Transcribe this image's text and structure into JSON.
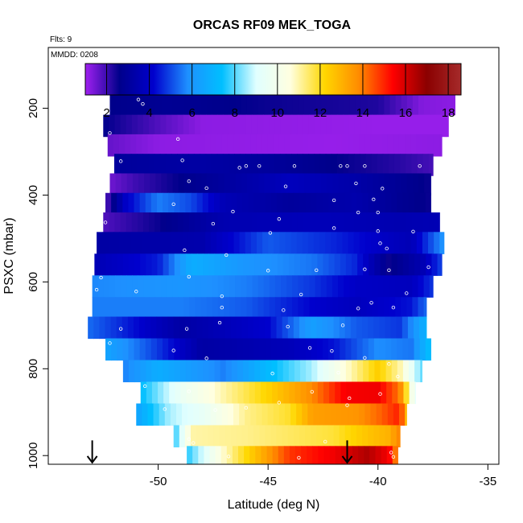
{
  "chart_data": {
    "type": "heatmap",
    "title": "ORCAS RF09 MEK_TOGA",
    "flights_label": "Flts: 9",
    "date_label": "MMDD: 0208",
    "xlabel": "Latitude (deg N)",
    "ylabel": "PSXC (mbar)",
    "xlim": [
      -55,
      -34.5
    ],
    "ylim": [
      1020,
      60
    ],
    "x_ticks": [
      -50,
      -45,
      -40,
      -35
    ],
    "y_ticks": [
      200,
      400,
      600,
      800,
      1000
    ],
    "colorbar": {
      "min": 1,
      "max": 18.6,
      "ticks": [
        2,
        4,
        6,
        8,
        10,
        12,
        14,
        16,
        18
      ],
      "colors": [
        "#a020f0",
        "#00008b",
        "#0000cd",
        "#1e90ff",
        "#00bfff",
        "#e0ffff",
        "#ffffe0",
        "#ffd700",
        "#ff8c00",
        "#ff0000",
        "#8b0000",
        "#a52a2a"
      ]
    },
    "bands": [
      {
        "p": 190,
        "xmin": -52.2,
        "xmax": -36.5,
        "knots": [
          [
            -52.2,
            2.6
          ],
          [
            -49.5,
            2.8
          ],
          [
            -45,
            2.5
          ],
          [
            -40,
            2.3
          ],
          [
            -38,
            1.3
          ],
          [
            -36.5,
            1.2
          ]
        ]
      },
      {
        "p": 240,
        "xmin": -52.5,
        "xmax": -36.8,
        "knots": [
          [
            -52.5,
            2.6
          ],
          [
            -50,
            1.8
          ],
          [
            -48,
            1.2
          ],
          [
            -40,
            1.1
          ],
          [
            -36.8,
            1.1
          ]
        ]
      },
      {
        "p": 285,
        "xmin": -52.3,
        "xmax": -37.1,
        "knots": [
          [
            -52.3,
            1.6
          ],
          [
            -50,
            1.2
          ],
          [
            -42,
            1.1
          ],
          [
            -37.1,
            1.2
          ]
        ]
      },
      {
        "p": 330,
        "xmin": -52.0,
        "xmax": -37.5,
        "knots": [
          [
            -52.0,
            3.0
          ],
          [
            -48,
            3.2
          ],
          [
            -45,
            3.0
          ],
          [
            -42,
            2.6
          ],
          [
            -39,
            2.2
          ],
          [
            -37.5,
            1.9
          ]
        ]
      },
      {
        "p": 375,
        "xmin": -52.2,
        "xmax": -37.6,
        "knots": [
          [
            -52.2,
            1.5
          ],
          [
            -51,
            2.0
          ],
          [
            -49,
            2.6
          ],
          [
            -46,
            3.3
          ],
          [
            -44,
            3.8
          ],
          [
            -41,
            3.3
          ],
          [
            -37.6,
            2.5
          ]
        ]
      },
      {
        "p": 420,
        "xmin": -52.4,
        "xmax": -37.6,
        "knots": [
          [
            -52.4,
            1.7
          ],
          [
            -51.5,
            4.0
          ],
          [
            -50,
            5.6
          ],
          [
            -48.5,
            5.0
          ],
          [
            -47,
            3.6
          ],
          [
            -44,
            3.0
          ],
          [
            -41,
            3.4
          ],
          [
            -39,
            2.8
          ],
          [
            -37.6,
            2.5
          ]
        ]
      },
      {
        "p": 465,
        "xmin": -52.5,
        "xmax": -37.2,
        "knots": [
          [
            -52.5,
            1.8
          ],
          [
            -50,
            2.5
          ],
          [
            -47,
            3.5
          ],
          [
            -43,
            3.7
          ],
          [
            -39,
            3.5
          ],
          [
            -37.2,
            3.6
          ]
        ]
      },
      {
        "p": 510,
        "xmin": -52.8,
        "xmax": -37.0,
        "knots": [
          [
            -52.8,
            3.2
          ],
          [
            -48,
            3.4
          ],
          [
            -45,
            5.2
          ],
          [
            -42,
            4.6
          ],
          [
            -38.5,
            3.6
          ],
          [
            -37.0,
            6.0
          ]
        ]
      },
      {
        "p": 560,
        "xmin": -52.9,
        "xmax": -37.1,
        "knots": [
          [
            -52.9,
            3.6
          ],
          [
            -50,
            4.5
          ],
          [
            -48.5,
            6.8
          ],
          [
            -46,
            6.0
          ],
          [
            -43,
            5.5
          ],
          [
            -41,
            4.6
          ],
          [
            -39.5,
            2.5
          ],
          [
            -38,
            3.5
          ],
          [
            -37.1,
            5.0
          ]
        ]
      },
      {
        "p": 610,
        "xmin": -53.0,
        "xmax": -37.5,
        "knots": [
          [
            -53.0,
            5.7
          ],
          [
            -49,
            6.0
          ],
          [
            -46,
            5.6
          ],
          [
            -43,
            4.8
          ],
          [
            -41,
            4.0
          ],
          [
            -38.5,
            3.8
          ],
          [
            -37.5,
            4.8
          ]
        ]
      },
      {
        "p": 660,
        "xmin": -53.0,
        "xmax": -37.8,
        "knots": [
          [
            -53.0,
            5.6
          ],
          [
            -49,
            5.6
          ],
          [
            -46,
            5.2
          ],
          [
            -43,
            4.2
          ],
          [
            -41,
            3.8
          ],
          [
            -38.5,
            4.4
          ],
          [
            -37.8,
            5.4
          ]
        ]
      },
      {
        "p": 705,
        "xmin": -53.2,
        "xmax": -37.8,
        "knots": [
          [
            -53.2,
            5.4
          ],
          [
            -51,
            4.3
          ],
          [
            -49,
            3.2
          ],
          [
            -45,
            4.2
          ],
          [
            -43,
            6.3
          ],
          [
            -41,
            5.2
          ],
          [
            -39,
            4.8
          ],
          [
            -37.8,
            7.0
          ]
        ]
      },
      {
        "p": 755,
        "xmin": -52.4,
        "xmax": -37.6,
        "knots": [
          [
            -52.4,
            6.5
          ],
          [
            -50,
            4.8
          ],
          [
            -48,
            3.2
          ],
          [
            -44,
            3.7
          ],
          [
            -42,
            4.4
          ],
          [
            -40,
            5.8
          ],
          [
            -38.5,
            5.5
          ],
          [
            -37.6,
            7.5
          ]
        ]
      },
      {
        "p": 805,
        "xmin": -51.6,
        "xmax": -38.0,
        "knots": [
          [
            -51.6,
            5.6
          ],
          [
            -50,
            6.8
          ],
          [
            -47,
            5.6
          ],
          [
            -45,
            7.2
          ],
          [
            -43,
            8.6
          ],
          [
            -41.5,
            10.6
          ],
          [
            -40,
            12.4
          ],
          [
            -39,
            11.0
          ],
          [
            -38,
            8.0
          ]
        ]
      },
      {
        "p": 855,
        "xmin": -50.8,
        "xmax": -38.3,
        "knots": [
          [
            -50.8,
            7.3
          ],
          [
            -49,
            9.5
          ],
          [
            -47,
            11.0
          ],
          [
            -45,
            12.3
          ],
          [
            -43,
            13.8
          ],
          [
            -41.5,
            15.5
          ],
          [
            -40,
            15.6
          ],
          [
            -39,
            14.0
          ],
          [
            -38.3,
            9.0
          ]
        ]
      },
      {
        "p": 905,
        "xmin": -51.0,
        "xmax": -38.7,
        "knots": [
          [
            -51.0,
            6.4
          ],
          [
            -49.5,
            8.6
          ],
          [
            -48,
            9.4
          ],
          [
            -46,
            11.2
          ],
          [
            -44,
            11.9
          ],
          [
            -43,
            13.4
          ],
          [
            -41,
            13.6
          ],
          [
            -40,
            14.2
          ],
          [
            -39,
            15.1
          ],
          [
            -38.7,
            12.5
          ]
        ]
      },
      {
        "p": 955,
        "xmin": -49.3,
        "xmax": -39.0,
        "knots": [
          [
            -49.3,
            7.5
          ],
          [
            -48.5,
            11.0
          ],
          [
            -46,
            11.2
          ],
          [
            -44,
            11.5
          ],
          [
            -42,
            11.8
          ],
          [
            -40.5,
            12.6
          ],
          [
            -39.5,
            13.0
          ],
          [
            -39.0,
            14.0
          ]
        ]
      },
      {
        "p": 1003,
        "xmin": -48.7,
        "xmax": -39.1,
        "knots": [
          [
            -48.7,
            7.6
          ],
          [
            -47,
            10.8
          ],
          [
            -45.5,
            12.8
          ],
          [
            -44,
            14.8
          ],
          [
            -42,
            15.6
          ],
          [
            -40.5,
            16.5
          ],
          [
            -39.5,
            15.5
          ],
          [
            -39.1,
            13.5
          ]
        ]
      }
    ],
    "band_half_mbar": 25,
    "column_width_deg": 0.26,
    "points": [
      [
        -50.9,
        180
      ],
      [
        -50.7,
        190
      ],
      [
        -36.3,
        178
      ],
      [
        -52.2,
        257
      ],
      [
        -49.1,
        271
      ],
      [
        -51.7,
        322
      ],
      [
        -48.9,
        320
      ],
      [
        -46.3,
        337
      ],
      [
        -46.0,
        333
      ],
      [
        -45.4,
        333
      ],
      [
        -43.8,
        333
      ],
      [
        -41.7,
        333
      ],
      [
        -41.4,
        333
      ],
      [
        -40.6,
        333
      ],
      [
        -38.1,
        333
      ],
      [
        -48.6,
        368
      ],
      [
        -47.8,
        384
      ],
      [
        -44.2,
        380
      ],
      [
        -41.0,
        373
      ],
      [
        -39.8,
        385
      ],
      [
        -40.2,
        410
      ],
      [
        -42.0,
        412
      ],
      [
        -49.3,
        421
      ],
      [
        -46.6,
        438
      ],
      [
        -44.5,
        455
      ],
      [
        -40.9,
        440
      ],
      [
        -40.0,
        440
      ],
      [
        -36.8,
        457
      ],
      [
        -52.4,
        463
      ],
      [
        -47.5,
        466
      ],
      [
        -44.9,
        487
      ],
      [
        -42.0,
        476
      ],
      [
        -40.0,
        483
      ],
      [
        -38.4,
        484
      ],
      [
        -39.9,
        511
      ],
      [
        -48.8,
        527
      ],
      [
        -46.9,
        538
      ],
      [
        -39.6,
        523
      ],
      [
        -52.6,
        590
      ],
      [
        -48.6,
        588
      ],
      [
        -45.0,
        574
      ],
      [
        -42.8,
        573
      ],
      [
        -40.6,
        571
      ],
      [
        -39.5,
        573
      ],
      [
        -37.7,
        566
      ],
      [
        -51.0,
        622
      ],
      [
        -47.1,
        633
      ],
      [
        -43.5,
        629
      ],
      [
        -40.3,
        648
      ],
      [
        -38.7,
        626
      ],
      [
        -52.8,
        618
      ],
      [
        -47.1,
        659
      ],
      [
        -44.3,
        665
      ],
      [
        -40.9,
        661
      ],
      [
        -39.3,
        659
      ],
      [
        -41.6,
        700
      ],
      [
        -47.2,
        694
      ],
      [
        -44.1,
        703
      ],
      [
        -51.7,
        708
      ],
      [
        -48.7,
        708
      ],
      [
        -52.2,
        741
      ],
      [
        -49.3,
        758
      ],
      [
        -47.8,
        776
      ],
      [
        -43.1,
        752
      ],
      [
        -42.1,
        759
      ],
      [
        -40.6,
        775
      ],
      [
        -39.5,
        789
      ],
      [
        -44.8,
        811
      ],
      [
        -41.8,
        809
      ],
      [
        -39.1,
        818
      ],
      [
        -50.6,
        840
      ],
      [
        -48.6,
        852
      ],
      [
        -43.0,
        853
      ],
      [
        -41.3,
        868
      ],
      [
        -39.9,
        858
      ],
      [
        -49.7,
        893
      ],
      [
        -47.4,
        895
      ],
      [
        -46.0,
        890
      ],
      [
        -44.5,
        878
      ],
      [
        -41.4,
        884
      ],
      [
        -48.6,
        962
      ],
      [
        -48.4,
        971
      ],
      [
        -42.4,
        968
      ],
      [
        -39.4,
        993
      ],
      [
        -39.3,
        1003
      ],
      [
        -43.6,
        1005
      ],
      [
        -46.8,
        1002
      ]
    ],
    "arrows": [
      [
        -53.0,
        965,
        1016
      ],
      [
        -41.4,
        965,
        1016
      ]
    ]
  }
}
